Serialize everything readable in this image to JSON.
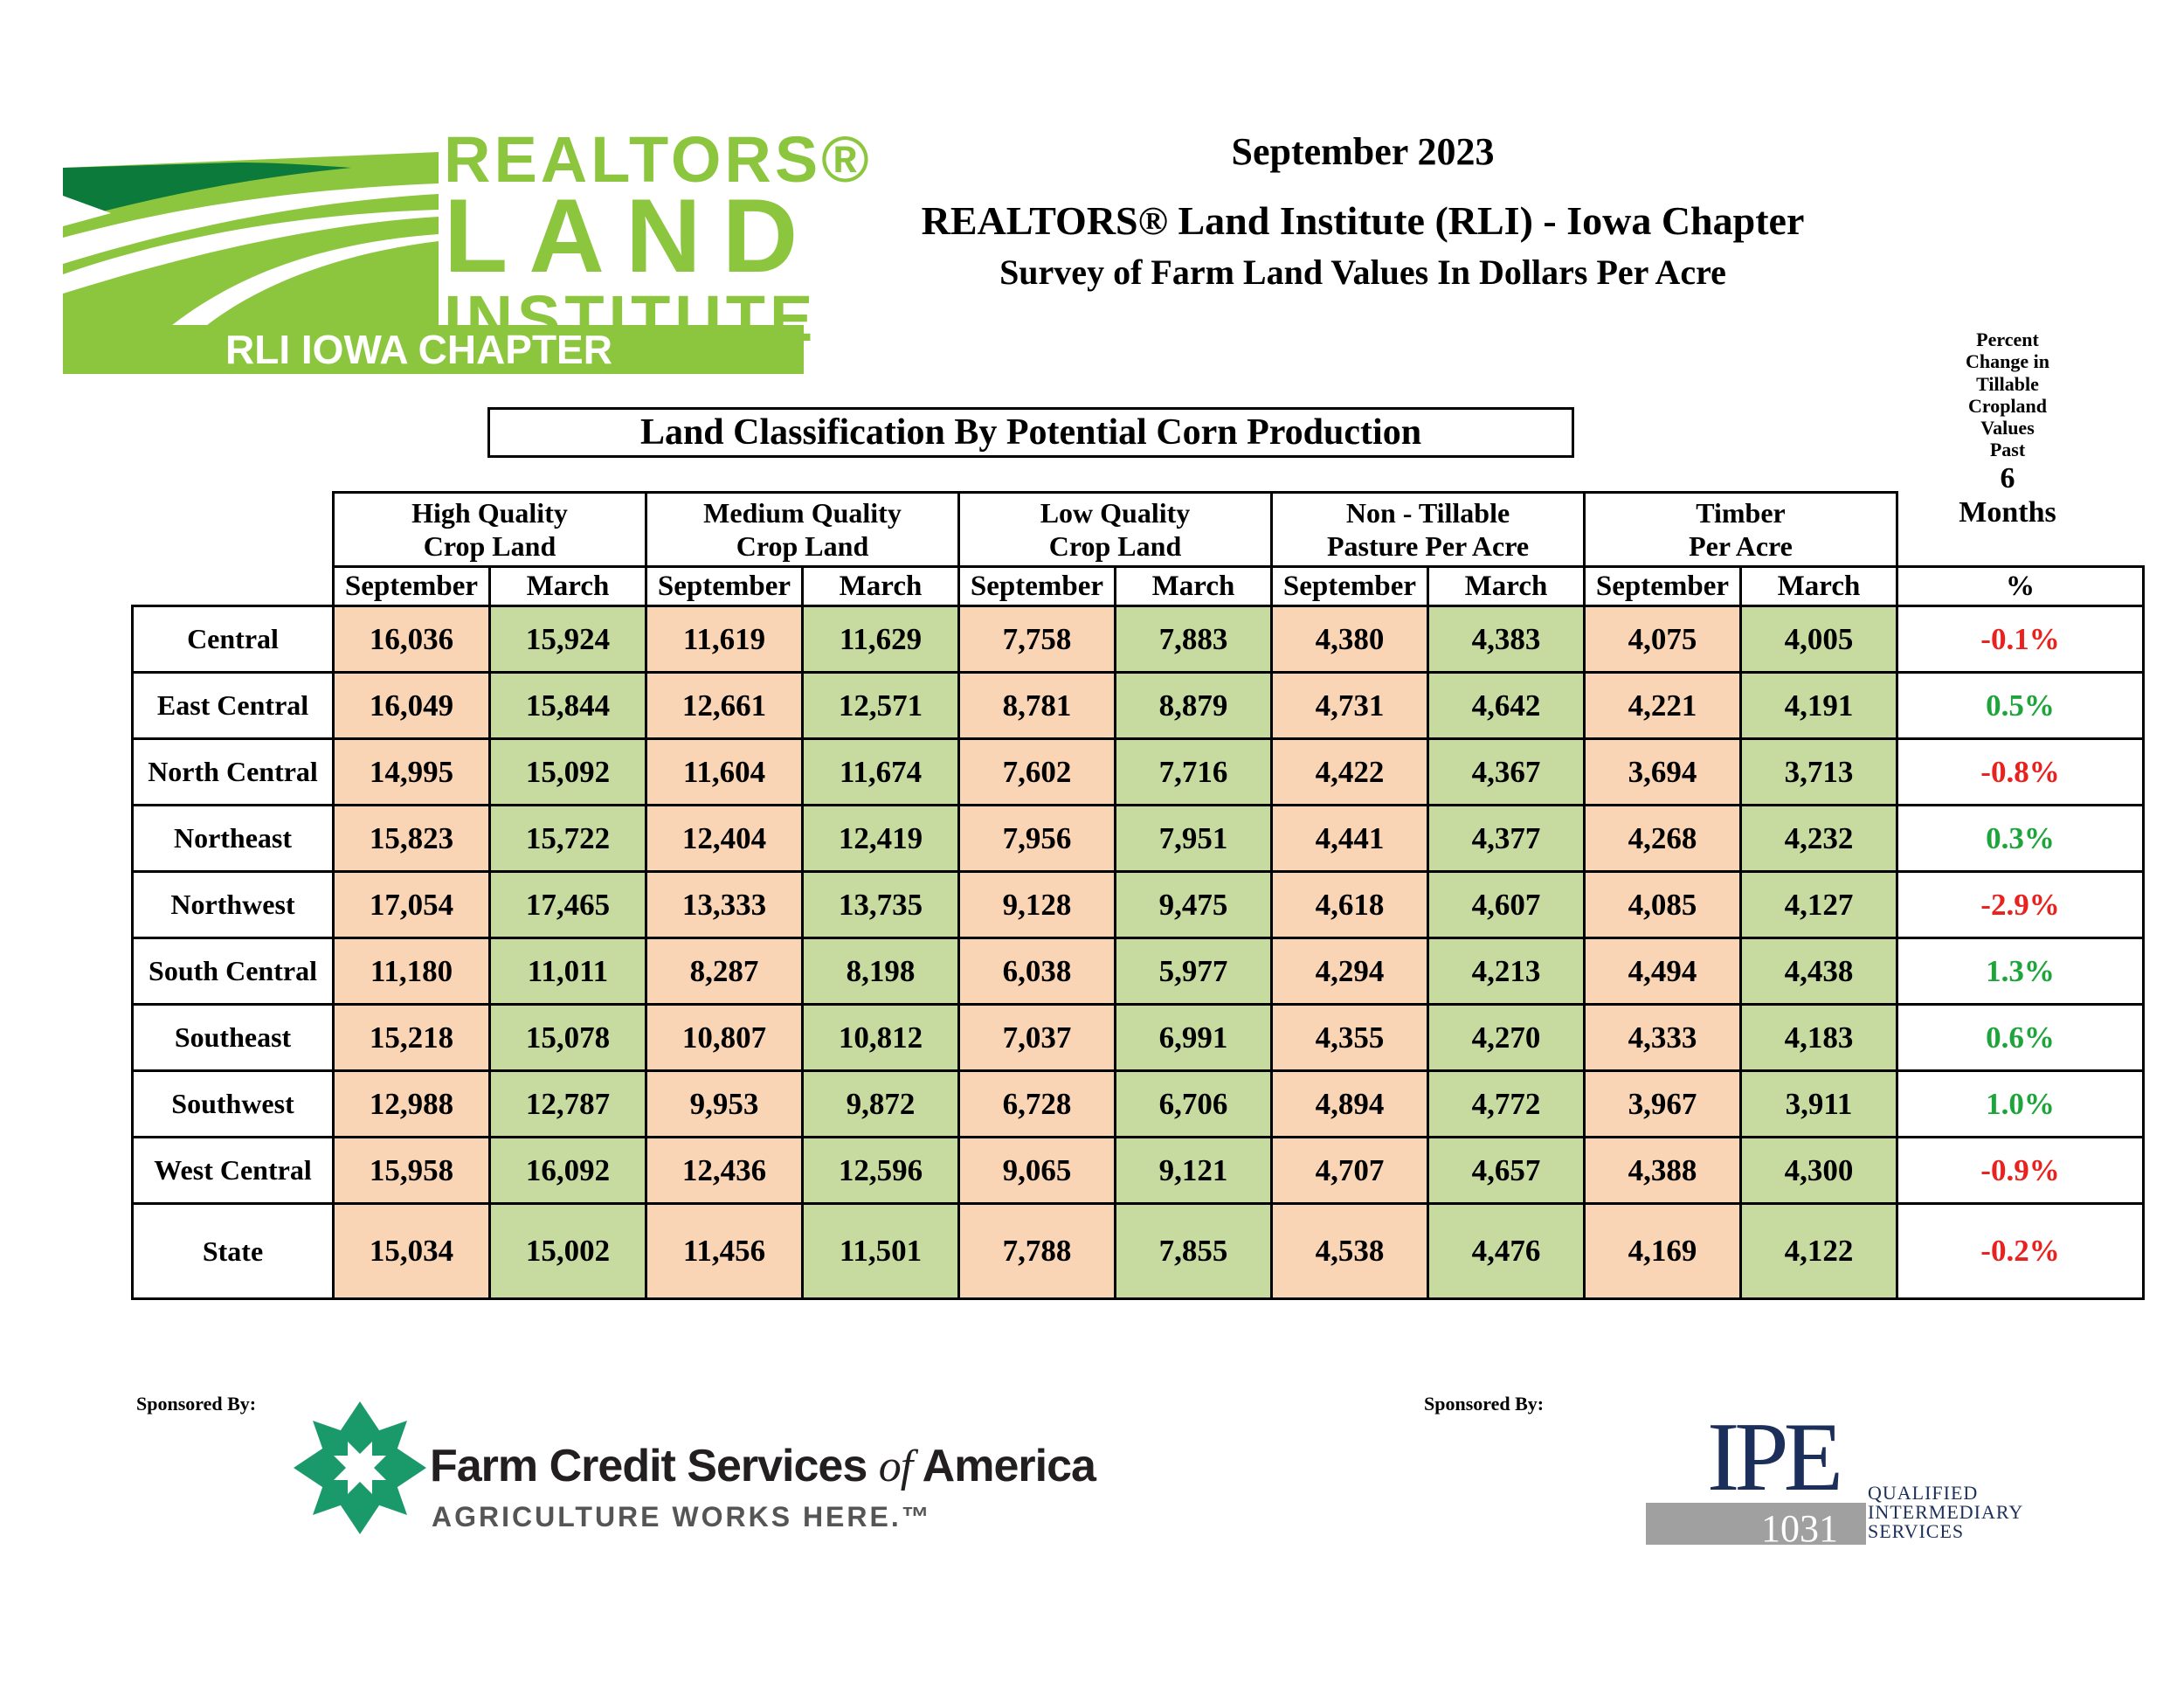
{
  "logo": {
    "line1": "REALTORS®",
    "line2": "LAND",
    "line3": "INSTITUTE",
    "chapter": "RLI IOWA CHAPTER",
    "green": "#8cc63f",
    "dark_green": "#0b7a3a"
  },
  "header": {
    "date": "September 2023",
    "title": "REALTORS® Land Institute (RLI) - Iowa Chapter",
    "subtitle": "Survey of Farm Land Values In Dollars Per Acre",
    "classification": "Land Classification By Potential Corn Production"
  },
  "percent_header": {
    "l1": "Percent",
    "l2": "Change in",
    "l3": "Tillable",
    "l4": "Cropland",
    "l5": "Values",
    "l6": "Past",
    "l7": "6",
    "l8": "Months",
    "symbol": "%"
  },
  "groups": [
    {
      "line1": "High Quality",
      "line2": "Crop Land"
    },
    {
      "line1": "Medium Quality",
      "line2": "Crop Land"
    },
    {
      "line1": "Low Quality",
      "line2": "Crop Land"
    },
    {
      "line1": "Non - Tillable",
      "line2": "Pasture Per Acre"
    },
    {
      "line1": "Timber",
      "line2": "Per Acre"
    }
  ],
  "sub_labels": {
    "sep": "September",
    "mar": "March"
  },
  "rows": [
    {
      "region": "Central",
      "values": [
        "16,036",
        "15,924",
        "11,619",
        "11,629",
        "7,758",
        "7,883",
        "4,380",
        "4,383",
        "4,075",
        "4,005"
      ],
      "pct": "-0.1%"
    },
    {
      "region": "East Central",
      "values": [
        "16,049",
        "15,844",
        "12,661",
        "12,571",
        "8,781",
        "8,879",
        "4,731",
        "4,642",
        "4,221",
        "4,191"
      ],
      "pct": "0.5%"
    },
    {
      "region": "North Central",
      "values": [
        "14,995",
        "15,092",
        "11,604",
        "11,674",
        "7,602",
        "7,716",
        "4,422",
        "4,367",
        "3,694",
        "3,713"
      ],
      "pct": "-0.8%"
    },
    {
      "region": "Northeast",
      "values": [
        "15,823",
        "15,722",
        "12,404",
        "12,419",
        "7,956",
        "7,951",
        "4,441",
        "4,377",
        "4,268",
        "4,232"
      ],
      "pct": "0.3%"
    },
    {
      "region": "Northwest",
      "values": [
        "17,054",
        "17,465",
        "13,333",
        "13,735",
        "9,128",
        "9,475",
        "4,618",
        "4,607",
        "4,085",
        "4,127"
      ],
      "pct": "-2.9%"
    },
    {
      "region": "South Central",
      "values": [
        "11,180",
        "11,011",
        "8,287",
        "8,198",
        "6,038",
        "5,977",
        "4,294",
        "4,213",
        "4,494",
        "4,438"
      ],
      "pct": "1.3%"
    },
    {
      "region": "Southeast",
      "values": [
        "15,218",
        "15,078",
        "10,807",
        "10,812",
        "7,037",
        "6,991",
        "4,355",
        "4,270",
        "4,333",
        "4,183"
      ],
      "pct": "0.6%"
    },
    {
      "region": "Southwest",
      "values": [
        "12,988",
        "12,787",
        "9,953",
        "9,872",
        "6,728",
        "6,706",
        "4,894",
        "4,772",
        "3,967",
        "3,911"
      ],
      "pct": "1.0%"
    },
    {
      "region": "West Central",
      "values": [
        "15,958",
        "16,092",
        "12,436",
        "12,596",
        "9,065",
        "9,121",
        "4,707",
        "4,657",
        "4,388",
        "4,300"
      ],
      "pct": "-0.9%"
    },
    {
      "region": "State",
      "values": [
        "15,034",
        "15,002",
        "11,456",
        "11,501",
        "7,788",
        "7,855",
        "4,538",
        "4,476",
        "4,169",
        "4,122"
      ],
      "pct": "-0.2%"
    }
  ],
  "colors": {
    "september_fill": "#fad5b5",
    "march_fill": "#c7dba0",
    "negative": "#e8231f",
    "positive": "#1ea43a"
  },
  "sponsors": {
    "label1": "Sponsored By:",
    "label2": "Sponsored By:",
    "fcs_name_a": "Farm Credit Services ",
    "fcs_name_of": "of",
    "fcs_name_b": " America",
    "fcs_tagline": "AGRICULTURE WORKS HERE.™",
    "ipe_mark": "IPE",
    "ipe_number": "1031",
    "ipe_l1": "QUALIFIED",
    "ipe_l2": "INTERMEDIARY",
    "ipe_l3": "SERVICES"
  }
}
